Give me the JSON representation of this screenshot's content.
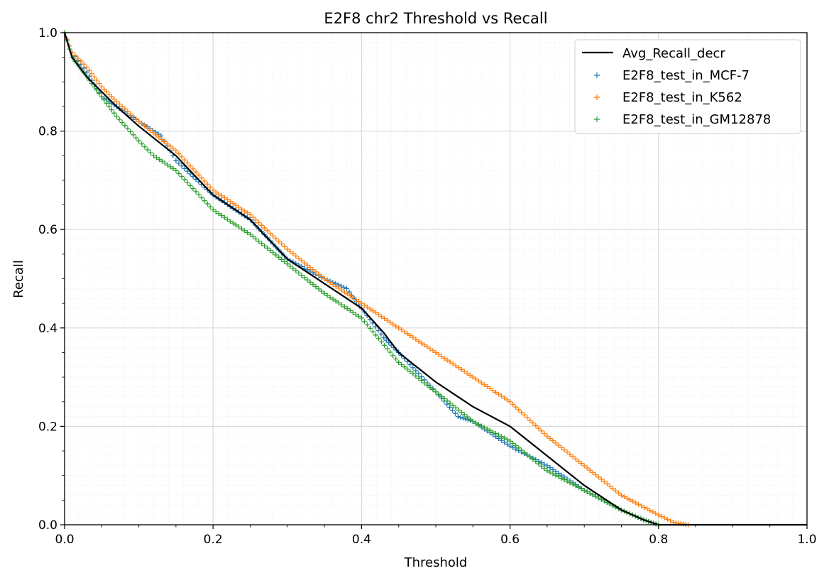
{
  "chart_data": {
    "type": "scatter",
    "title": "E2F8 chr2 Threshold vs Recall",
    "xlabel": "Threshold",
    "ylabel": "Recall",
    "xlim": [
      0.0,
      1.0
    ],
    "ylim": [
      0.0,
      1.0
    ],
    "x_ticks": [
      "0.0",
      "0.2",
      "0.4",
      "0.6",
      "0.8",
      "1.0"
    ],
    "y_ticks": [
      "0.0",
      "0.2",
      "0.4",
      "0.6",
      "0.8",
      "1.0"
    ],
    "grid": "on (major and minor)",
    "legend_position": "top-right",
    "series": [
      {
        "name": "Avg_Recall_decr",
        "kind": "line",
        "color": "#000000",
        "points": [
          [
            0,
            1.0
          ],
          [
            0.01,
            0.95
          ],
          [
            0.03,
            0.91
          ],
          [
            0.05,
            0.88
          ],
          [
            0.07,
            0.85
          ],
          [
            0.1,
            0.81
          ],
          [
            0.15,
            0.75
          ],
          [
            0.2,
            0.67
          ],
          [
            0.25,
            0.62
          ],
          [
            0.3,
            0.54
          ],
          [
            0.35,
            0.49
          ],
          [
            0.4,
            0.44
          ],
          [
            0.43,
            0.39
          ],
          [
            0.45,
            0.35
          ],
          [
            0.5,
            0.29
          ],
          [
            0.55,
            0.24
          ],
          [
            0.6,
            0.2
          ],
          [
            0.65,
            0.14
          ],
          [
            0.7,
            0.08
          ],
          [
            0.75,
            0.03
          ],
          [
            0.78,
            0.01
          ],
          [
            0.8,
            0.0
          ],
          [
            1.0,
            0.0
          ]
        ]
      },
      {
        "name": "E2F8_test_in_MCF-7",
        "kind": "scatter",
        "color": "#1f77b4",
        "points": [
          [
            0,
            1.0
          ],
          [
            0.01,
            0.96
          ],
          [
            0.03,
            0.92
          ],
          [
            0.05,
            0.87
          ],
          [
            0.07,
            0.85
          ],
          [
            0.1,
            0.82
          ],
          [
            0.13,
            0.79
          ],
          [
            0.15,
            0.74
          ],
          [
            0.2,
            0.67
          ],
          [
            0.25,
            0.62
          ],
          [
            0.3,
            0.54
          ],
          [
            0.35,
            0.5
          ],
          [
            0.38,
            0.48
          ],
          [
            0.4,
            0.44
          ],
          [
            0.43,
            0.38
          ],
          [
            0.45,
            0.35
          ],
          [
            0.5,
            0.27
          ],
          [
            0.53,
            0.22
          ],
          [
            0.55,
            0.21
          ],
          [
            0.6,
            0.16
          ],
          [
            0.65,
            0.12
          ],
          [
            0.7,
            0.07
          ],
          [
            0.75,
            0.03
          ],
          [
            0.78,
            0.01
          ],
          [
            0.8,
            0.0
          ],
          [
            1.0,
            0.0
          ]
        ]
      },
      {
        "name": "E2F8_test_in_K562",
        "kind": "scatter",
        "color": "#ff7f0e",
        "points": [
          [
            0,
            1.0
          ],
          [
            0.01,
            0.96
          ],
          [
            0.03,
            0.93
          ],
          [
            0.05,
            0.89
          ],
          [
            0.07,
            0.86
          ],
          [
            0.1,
            0.82
          ],
          [
            0.15,
            0.76
          ],
          [
            0.2,
            0.68
          ],
          [
            0.25,
            0.63
          ],
          [
            0.3,
            0.56
          ],
          [
            0.35,
            0.5
          ],
          [
            0.4,
            0.45
          ],
          [
            0.45,
            0.4
          ],
          [
            0.5,
            0.35
          ],
          [
            0.55,
            0.3
          ],
          [
            0.6,
            0.25
          ],
          [
            0.65,
            0.18
          ],
          [
            0.7,
            0.12
          ],
          [
            0.75,
            0.06
          ],
          [
            0.8,
            0.02
          ],
          [
            0.82,
            0.005
          ],
          [
            0.84,
            0.0
          ],
          [
            1.0,
            0.0
          ]
        ]
      },
      {
        "name": "E2F8_test_in_GM12878",
        "kind": "scatter",
        "color": "#2ca02c",
        "points": [
          [
            0,
            1.0
          ],
          [
            0.01,
            0.95
          ],
          [
            0.03,
            0.91
          ],
          [
            0.05,
            0.87
          ],
          [
            0.07,
            0.83
          ],
          [
            0.1,
            0.78
          ],
          [
            0.12,
            0.75
          ],
          [
            0.15,
            0.72
          ],
          [
            0.2,
            0.64
          ],
          [
            0.25,
            0.59
          ],
          [
            0.3,
            0.53
          ],
          [
            0.35,
            0.47
          ],
          [
            0.4,
            0.42
          ],
          [
            0.45,
            0.33
          ],
          [
            0.5,
            0.27
          ],
          [
            0.55,
            0.21
          ],
          [
            0.6,
            0.17
          ],
          [
            0.65,
            0.11
          ],
          [
            0.7,
            0.07
          ],
          [
            0.75,
            0.03
          ],
          [
            0.78,
            0.01
          ],
          [
            0.8,
            0.0
          ],
          [
            1.0,
            0.0
          ]
        ]
      }
    ]
  }
}
